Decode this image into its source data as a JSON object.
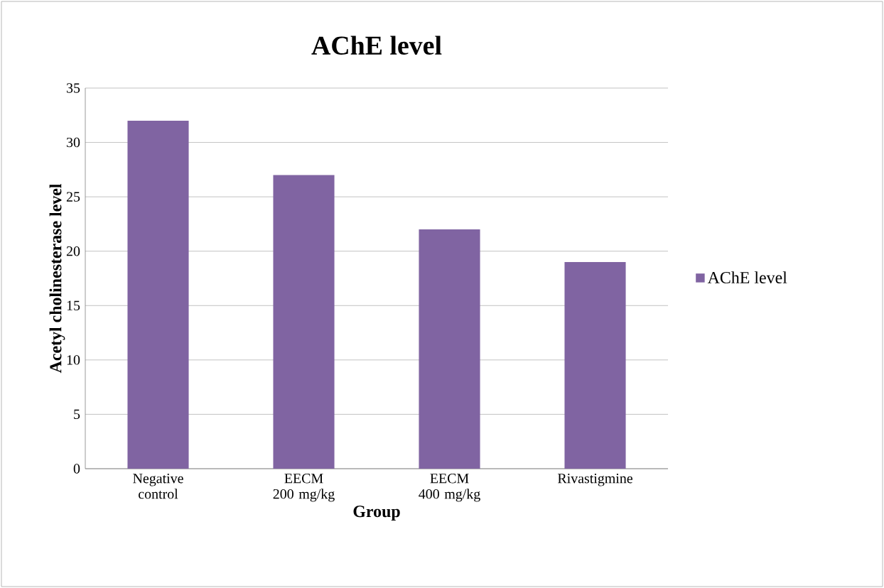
{
  "chart_data": {
    "type": "bar",
    "title": "AChE level",
    "xlabel": "Group",
    "ylabel": "Acetyl cholinesterase level",
    "categories": [
      "Negative control",
      "EECM 200 mg/kg",
      "EECM 400 mg/kg",
      "Rivastigmine"
    ],
    "series": [
      {
        "name": "AChE level",
        "color": "#8064a2",
        "values": [
          32,
          27,
          22,
          19
        ]
      }
    ],
    "ylim": [
      0,
      35
    ],
    "yticks": [
      0,
      5,
      10,
      15,
      20,
      25,
      30,
      35
    ],
    "grid": "y",
    "legend": "right"
  }
}
